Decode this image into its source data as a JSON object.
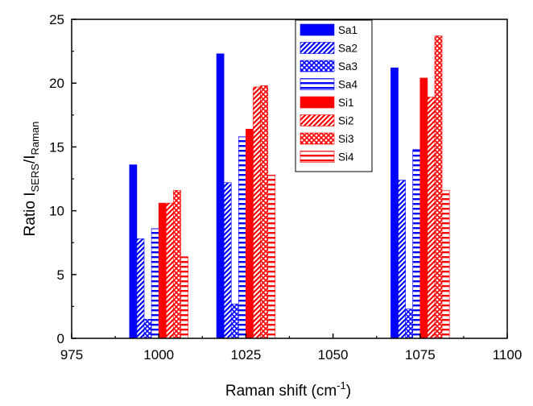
{
  "chart_data": {
    "type": "bar",
    "xlabel": {
      "text": "Raman shift (cm",
      "sup": "-1",
      "suffix": ")"
    },
    "ylabel": {
      "pre": "Ratio I",
      "sub1": "SERS",
      "mid": "/I",
      "sub2": "Raman"
    },
    "xlim": [
      975,
      1100
    ],
    "ylim": [
      0,
      25
    ],
    "xticks": [
      975,
      1000,
      1025,
      1050,
      1075,
      1100
    ],
    "yticks": [
      0,
      5,
      10,
      15,
      20,
      25
    ],
    "grid": false,
    "legend_position": "top-right",
    "groups": [
      1000,
      1025,
      1075
    ],
    "series": [
      {
        "name": "Sa1",
        "color": "#0000ff",
        "pattern": "solid",
        "values": [
          13.6,
          22.3,
          21.2
        ]
      },
      {
        "name": "Sa2",
        "color": "#0000ff",
        "pattern": "diagonal",
        "values": [
          7.8,
          12.2,
          12.4
        ]
      },
      {
        "name": "Sa3",
        "color": "#0000ff",
        "pattern": "crosshatch",
        "values": [
          1.5,
          2.7,
          2.3
        ]
      },
      {
        "name": "Sa4",
        "color": "#0000ff",
        "pattern": "horizontal",
        "values": [
          8.6,
          15.8,
          14.8
        ]
      },
      {
        "name": "Si1",
        "color": "#ff0000",
        "pattern": "solid",
        "values": [
          10.6,
          16.4,
          20.4
        ]
      },
      {
        "name": "Si2",
        "color": "#ff0000",
        "pattern": "diagonal",
        "values": [
          10.6,
          19.7,
          18.9
        ]
      },
      {
        "name": "Si3",
        "color": "#ff0000",
        "pattern": "crosshatch",
        "values": [
          11.6,
          19.8,
          23.7
        ]
      },
      {
        "name": "Si4",
        "color": "#ff0000",
        "pattern": "horizontal",
        "values": [
          6.4,
          12.8,
          11.6
        ]
      }
    ]
  }
}
